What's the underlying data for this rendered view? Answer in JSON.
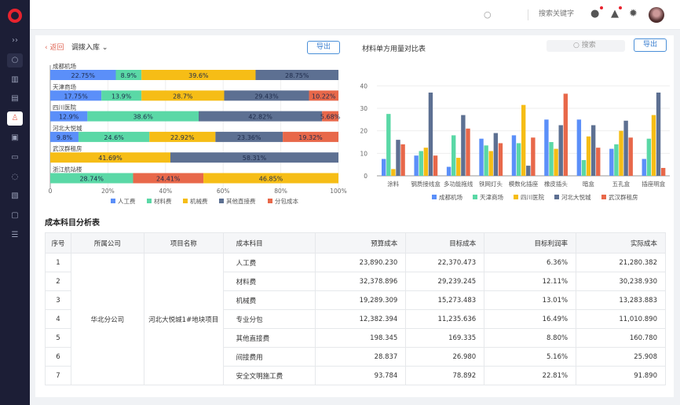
{
  "header": {
    "search_placeholder": "搜索关键字",
    "icons": [
      "chat-icon",
      "bell-icon",
      "gear-icon"
    ]
  },
  "sidebar": {
    "items": [
      "expand-icon",
      "search-icon",
      "building-icon",
      "document-check-icon",
      "stamp-icon",
      "clipboard-icon",
      "folder-icon",
      "water-drop-icon",
      "image-check-icon",
      "copy-icon",
      "sliders-icon"
    ],
    "active": 4
  },
  "left": {
    "back": "返回",
    "title": "调拨入库",
    "export": "导出"
  },
  "right": {
    "title": "材料单方用量对比表",
    "search_placeholder": "搜索",
    "export": "导出"
  },
  "colors": {
    "人工费": "#5b8ff9",
    "材料费": "#5ad8a6",
    "机械费": "#f6bd16",
    "其他直接费": "#5d7092",
    "分包成本": "#e8684a",
    "成都机场": "#5b8ff9",
    "天津商场": "#5ad8a6",
    "四川医院": "#f6bd16",
    "河北大悦城": "#5d7092",
    "武汉群租房": "#e8684a"
  },
  "chart_data": [
    {
      "type": "bar",
      "orientation": "horizontal",
      "stacked": "percent",
      "xlim": [
        0,
        100
      ],
      "xticks": [
        "0",
        "20%",
        "40%",
        "60%",
        "80%",
        "100%"
      ],
      "legend": [
        "人工费",
        "材料费",
        "机械费",
        "其他直接费",
        "分包成本"
      ],
      "legend_position": "bottom",
      "rows": [
        {
          "label": "成都机场",
          "segments": [
            [
              "人工费",
              22.75
            ],
            [
              "材料费",
              8.9
            ],
            [
              "机械费",
              39.6
            ],
            [
              "其他直接费",
              28.75
            ]
          ]
        },
        {
          "label": "天津商场",
          "segments": [
            [
              "人工费",
              17.75
            ],
            [
              "材料费",
              13.9
            ],
            [
              "机械费",
              28.7
            ],
            [
              "其他直接费",
              29.43
            ],
            [
              "分包成本",
              10.22
            ]
          ]
        },
        {
          "label": "四川医院",
          "segments": [
            [
              "人工费",
              12.9
            ],
            [
              "材料费",
              38.6
            ],
            [
              "其他直接费",
              42.82
            ],
            [
              "分包成本",
              5.68
            ]
          ]
        },
        {
          "label": "河北大悦城",
          "segments": [
            [
              "人工费",
              9.8
            ],
            [
              "材料费",
              24.6
            ],
            [
              "机械费",
              22.92
            ],
            [
              "其他直接费",
              23.36
            ],
            [
              "分包成本",
              19.32
            ]
          ]
        },
        {
          "label": "武汉群租房",
          "segments": [
            [
              "机械费",
              41.69
            ],
            [
              "其他直接费",
              58.31
            ]
          ]
        },
        {
          "label": "浙江航站楼",
          "segments": [
            [
              "材料费",
              28.74
            ],
            [
              "分包成本",
              24.41
            ],
            [
              "机械费",
              46.85
            ]
          ]
        }
      ]
    },
    {
      "type": "bar",
      "orientation": "vertical",
      "ylim": [
        0,
        45
      ],
      "yticks": [
        0,
        10,
        20,
        30,
        40
      ],
      "grid": true,
      "legend_position": "bottom",
      "categories": [
        "涂料",
        "钢质接线盒",
        "多功能拖线",
        "铁网灯头",
        "模数化插座",
        "橡皮插头",
        "暗盒",
        "五孔盒",
        "插座明盒"
      ],
      "series": [
        {
          "name": "成都机场",
          "values": [
            7.5,
            9,
            4,
            16.5,
            18,
            25,
            25,
            12,
            7.5
          ]
        },
        {
          "name": "天津商场",
          "values": [
            27.5,
            11,
            18,
            13.5,
            14.5,
            15,
            7,
            14,
            16.5
          ]
        },
        {
          "name": "四川医院",
          "values": [
            3,
            12.5,
            8,
            11,
            31.5,
            12,
            17.5,
            20,
            27
          ]
        },
        {
          "name": "河北大悦城",
          "values": [
            16,
            37,
            27,
            19,
            4.5,
            22.5,
            22.5,
            24.5,
            37
          ]
        },
        {
          "name": "武汉群租房",
          "values": [
            14,
            9,
            21,
            14.5,
            17,
            36.5,
            12.5,
            17,
            3.5
          ]
        }
      ]
    }
  ],
  "table": {
    "title": "成本科目分析表",
    "headers": [
      "序号",
      "所属公司",
      "项目名称",
      "成本科目",
      "预算成本",
      "目标成本",
      "目标利润率",
      "实际成本"
    ],
    "company": "华北分公司",
    "project": "河北大悦城1#地块项目",
    "rows": [
      [
        "1",
        "人工费",
        "23,890.230",
        "22,370.473",
        "6.36%",
        "21,280.382"
      ],
      [
        "2",
        "材料费",
        "32,378.896",
        "29,239.245",
        "12.11%",
        "30,238.930"
      ],
      [
        "3",
        "机械费",
        "19,289.309",
        "15,273.483",
        "13.01%",
        "13,283.883"
      ],
      [
        "4",
        "专业分包",
        "12,382.394",
        "11,235.636",
        "16.49%",
        "11,010.890"
      ],
      [
        "5",
        "其他直接费",
        "198.345",
        "169.335",
        "8.80%",
        "160.780"
      ],
      [
        "6",
        "间接费用",
        "28.837",
        "26.980",
        "5.16%",
        "25.908"
      ],
      [
        "7",
        "安全文明施工费",
        "93.784",
        "78.892",
        "22.81%",
        "91.890"
      ]
    ]
  }
}
